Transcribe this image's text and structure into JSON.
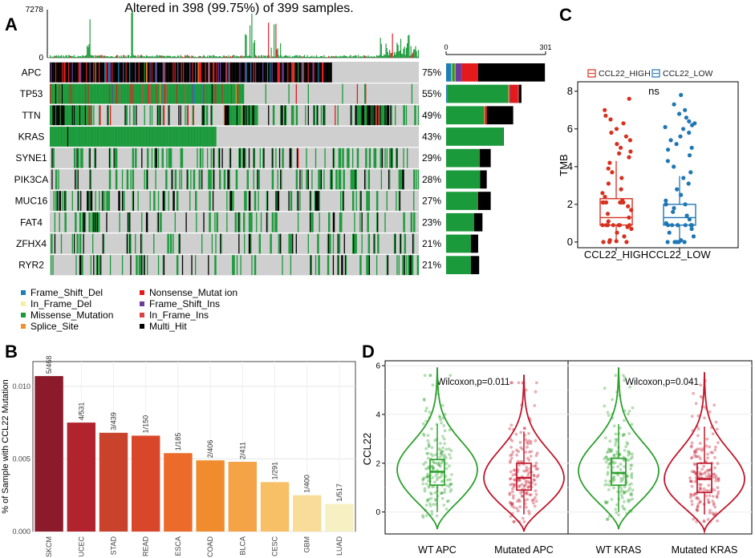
{
  "figure": {
    "panel_letters": [
      "A",
      "B",
      "C",
      "D"
    ]
  },
  "chart_data": [
    {
      "panel": "A",
      "type": "heatmap",
      "title": "Altered in 398 (99.75%) of 399 samples.",
      "top_axis": {
        "max_label": "7278",
        "min_label": "0"
      },
      "right_axis": {
        "min_label": "0",
        "max_label": "301",
        "max": 301
      },
      "genes": [
        "APC",
        "TP53",
        "TTN",
        "KRAS",
        "SYNE1",
        "PIK3CA",
        "MUC16",
        "FAT4",
        "ZFHX4",
        "RYR2"
      ],
      "percent": [
        "75%",
        "55%",
        "49%",
        "43%",
        "29%",
        "28%",
        "27%",
        "23%",
        "21%",
        "21%"
      ],
      "alteration_fraction": [
        0.75,
        0.55,
        0.49,
        0.43,
        0.29,
        0.28,
        0.27,
        0.23,
        0.21,
        0.21
      ],
      "counts": [
        {
          "Frame_Shift_Del": 16,
          "In_Frame_Del": 2,
          "Missense_Mutation": 8,
          "Splice_Site": 3,
          "Nonsense_Mutation": 50,
          "Frame_Shift_Ins": 18,
          "In_Frame_Ins": 0,
          "Multi_Hit": 202
        },
        {
          "Frame_Shift_Del": 3,
          "In_Frame_Del": 0,
          "Missense_Mutation": 185,
          "Splice_Site": 3,
          "Nonsense_Mutation": 22,
          "Frame_Shift_Ins": 3,
          "In_Frame_Ins": 4,
          "Multi_Hit": 8
        },
        {
          "Frame_Shift_Del": 0,
          "In_Frame_Del": 0,
          "Missense_Mutation": 115,
          "Splice_Site": 2,
          "Nonsense_Mutation": 6,
          "Frame_Shift_Ins": 0,
          "In_Frame_Ins": 0,
          "Multi_Hit": 80
        },
        {
          "Frame_Shift_Del": 0,
          "In_Frame_Del": 0,
          "Missense_Mutation": 172,
          "Splice_Site": 0,
          "Nonsense_Mutation": 0,
          "Frame_Shift_Ins": 0,
          "In_Frame_Ins": 0,
          "Multi_Hit": 2
        },
        {
          "Frame_Shift_Del": 0,
          "In_Frame_Del": 0,
          "Missense_Mutation": 100,
          "Splice_Site": 0,
          "Nonsense_Mutation": 2,
          "Frame_Shift_Ins": 0,
          "In_Frame_Ins": 0,
          "Multi_Hit": 33
        },
        {
          "Frame_Shift_Del": 0,
          "In_Frame_Del": 0,
          "Missense_Mutation": 103,
          "Splice_Site": 0,
          "Nonsense_Mutation": 0,
          "Frame_Shift_Ins": 0,
          "In_Frame_Ins": 0,
          "Multi_Hit": 20
        },
        {
          "Frame_Shift_Del": 0,
          "In_Frame_Del": 0,
          "Missense_Mutation": 95,
          "Splice_Site": 0,
          "Nonsense_Mutation": 2,
          "Frame_Shift_Ins": 0,
          "In_Frame_Ins": 0,
          "Multi_Hit": 38
        },
        {
          "Frame_Shift_Del": 0,
          "In_Frame_Del": 0,
          "Missense_Mutation": 85,
          "Splice_Site": 0,
          "Nonsense_Mutation": 0,
          "Frame_Shift_Ins": 0,
          "In_Frame_Ins": 0,
          "Multi_Hit": 25
        },
        {
          "Frame_Shift_Del": 0,
          "In_Frame_Del": 0,
          "Missense_Mutation": 75,
          "Splice_Site": 0,
          "Nonsense_Mutation": 0,
          "Frame_Shift_Ins": 0,
          "In_Frame_Ins": 0,
          "Multi_Hit": 22
        },
        {
          "Frame_Shift_Del": 0,
          "In_Frame_Del": 0,
          "Missense_Mutation": 75,
          "Splice_Site": 0,
          "Nonsense_Mutation": 0,
          "Frame_Shift_Ins": 0,
          "In_Frame_Ins": 0,
          "Multi_Hit": 25
        }
      ],
      "legend": [
        {
          "label": "Frame_Shift_Del",
          "color": "#1f7fb4"
        },
        {
          "label": "In_Frame_Del",
          "color": "#f5f0a0"
        },
        {
          "label": "Missense_Mutation",
          "color": "#1a9a3a"
        },
        {
          "label": "Splice_Site",
          "color": "#f28e2b"
        },
        {
          "label": "Nonsense_Mutat ion",
          "color": "#e31a1c"
        },
        {
          "label": "Frame_Shift_Ins",
          "color": "#6a3d9a"
        },
        {
          "label": "In_Frame_Ins",
          "color": "#d94040"
        },
        {
          "label": "Multi_Hit",
          "color": "#000000"
        }
      ],
      "background_color": "#cfcfcf",
      "tmb_bar_color": "#1a9a3a"
    },
    {
      "panel": "B",
      "type": "bar",
      "ylabel": "% of Sample with CCL22 Mutation",
      "categories": [
        "SKCM",
        "UCEC",
        "STAD",
        "READ",
        "ESCA",
        "COAD",
        "BLCA",
        "CESC",
        "GBM",
        "LUAD"
      ],
      "values": [
        0.0107,
        0.0075,
        0.0068,
        0.0066,
        0.0054,
        0.0049,
        0.0048,
        0.0034,
        0.0025,
        0.0019
      ],
      "data_labels": [
        "5/468",
        "4/531",
        "3/439",
        "1/150",
        "1/185",
        "2/406",
        "2/411",
        "1/291",
        "1/400",
        "1/517"
      ],
      "colors": [
        "#8b1a2b",
        "#b1242e",
        "#c8422c",
        "#d9472a",
        "#ec6a2a",
        "#f08c2e",
        "#f5a347",
        "#f7bf66",
        "#f8dc98",
        "#f7f0c2"
      ],
      "yticks": [
        "0.000",
        "0.005",
        "0.010"
      ],
      "ytick_values": [
        0,
        0.005,
        0.01
      ],
      "ylim": [
        0,
        0.0117
      ],
      "grid": true
    },
    {
      "panel": "C",
      "type": "scatter",
      "ylabel": "TMB",
      "categories": [
        "CCL22_HIGH",
        "CCL22_LOW"
      ],
      "legend": [
        "CCL22_HIGH",
        "CCL22_LOW"
      ],
      "colors": [
        "#d7301f",
        "#1f77b4"
      ],
      "yticks": [
        "0",
        "2",
        "4",
        "6",
        "8"
      ],
      "ytick_values": [
        0,
        2,
        4,
        6,
        8
      ],
      "ylim": [
        -0.3,
        8.5
      ],
      "significance": "ns",
      "boxes": [
        {
          "q1": 0.9,
          "median": 1.3,
          "q3": 2.3,
          "whisker_low": 0,
          "whisker_high": 4.3
        },
        {
          "q1": 0.9,
          "median": 1.3,
          "q3": 2.0,
          "whisker_low": 0,
          "whisker_high": 3.5
        }
      ],
      "points": [
        [
          0,
          0,
          0,
          0.05,
          0.1,
          0.3,
          0.5,
          0.7,
          0.8,
          0.9,
          0.9,
          0.9,
          0.9,
          0.9,
          0.9,
          0.9,
          1.1,
          1.3,
          1.5,
          1.7,
          1.9,
          2.1,
          2.1,
          2.1,
          2.1,
          2.1,
          2.1,
          2.2,
          2.4,
          2.6,
          2.8,
          3.1,
          3.4,
          3.7,
          3.9,
          4.2,
          4.5,
          4.7,
          4.8,
          5.0,
          5.2,
          5.4,
          5.6,
          5.8,
          6.0,
          6.3,
          6.5,
          6.7,
          7.0,
          7.6
        ],
        [
          0,
          0,
          0,
          0,
          0,
          0.1,
          0.3,
          0.5,
          0.7,
          0.9,
          0.9,
          0.9,
          0.9,
          0.9,
          0.9,
          0.9,
          0.9,
          1.0,
          1.2,
          1.4,
          1.6,
          1.8,
          2.0,
          2.0,
          2.0,
          2.2,
          2.5,
          2.8,
          3.1,
          3.4,
          3.7,
          4.0,
          4.3,
          4.6,
          4.9,
          5.0,
          5.2,
          5.4,
          5.6,
          5.8,
          6.0,
          6.1,
          6.2,
          6.3,
          6.4,
          6.6,
          6.8,
          7.0,
          7.3,
          7.8
        ]
      ]
    },
    {
      "type": "scatter",
      "panel": "D",
      "subtype": "violin",
      "ylabel": "CCL22",
      "yticks": [
        "0",
        "2",
        "4",
        "6"
      ],
      "ytick_values": [
        0,
        2,
        4,
        6
      ],
      "ylim": [
        -0.9,
        6.2
      ],
      "subplots": [
        {
          "annotation": "Wilcoxon,p=0.011",
          "categories": [
            "WT APC",
            "Mutated APC"
          ],
          "colors": [
            "#2ca02c",
            "#c0172b"
          ],
          "boxes": [
            {
              "q1": 1.1,
              "median": 1.65,
              "q3": 2.15,
              "whisker_low": 0,
              "whisker_high": 3.6
            },
            {
              "q1": 0.9,
              "median": 1.4,
              "q3": 2.0,
              "whisker_low": -0.1,
              "whisker_high": 3.3
            }
          ],
          "violin_range": [
            [
              -0.7,
              5.9
            ],
            [
              -0.8,
              5.6
            ]
          ],
          "violin_mode": [
            1.75,
            1.4
          ]
        },
        {
          "annotation": "Wilcoxon,p=0.041",
          "categories": [
            "WT KRAS",
            "Mutated KRAS"
          ],
          "colors": [
            "#2ca02c",
            "#c0172b"
          ],
          "boxes": [
            {
              "q1": 1.1,
              "median": 1.6,
              "q3": 2.2,
              "whisker_low": 0,
              "whisker_high": 3.6
            },
            {
              "q1": 0.8,
              "median": 1.35,
              "q3": 2.0,
              "whisker_low": -0.1,
              "whisker_high": 3.5
            }
          ],
          "violin_range": [
            [
              -0.7,
              5.9
            ],
            [
              -0.8,
              5.7
            ]
          ],
          "violin_mode": [
            1.7,
            1.35
          ]
        }
      ]
    }
  ]
}
